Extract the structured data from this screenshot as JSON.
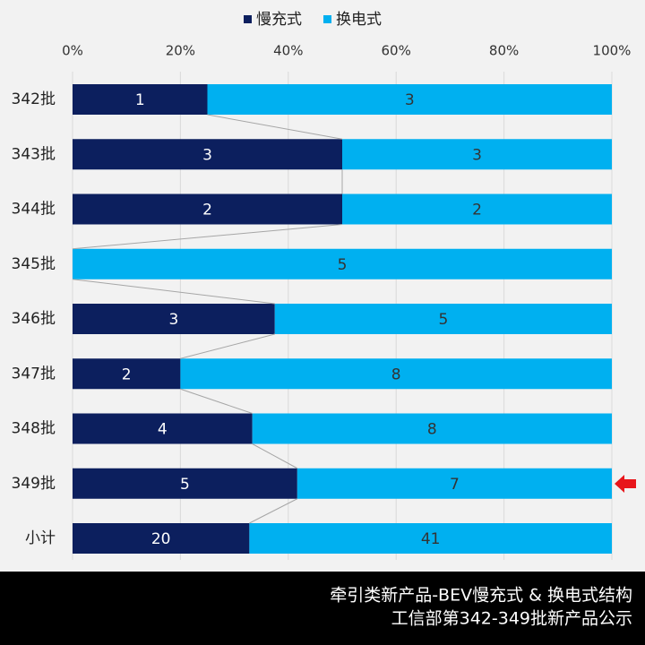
{
  "chart_data": {
    "type": "bar",
    "orientation": "horizontal",
    "stacking": "percent",
    "categories": [
      "342批",
      "343批",
      "344批",
      "345批",
      "346批",
      "347批",
      "348批",
      "349批",
      "小计"
    ],
    "series": [
      {
        "name": "慢充式",
        "color": "#0c1f5e",
        "values": [
          1,
          3,
          2,
          0,
          3,
          2,
          4,
          5,
          20
        ]
      },
      {
        "name": "换电式",
        "color": "#00b0f0",
        "values": [
          3,
          3,
          2,
          5,
          5,
          8,
          8,
          7,
          41
        ]
      }
    ],
    "xlim": [
      0,
      100
    ],
    "xticks": [
      {
        "value": 0,
        "label": "0%"
      },
      {
        "value": 20,
        "label": "20%"
      },
      {
        "value": 40,
        "label": "40%"
      },
      {
        "value": 60,
        "label": "60%"
      },
      {
        "value": 80,
        "label": "80%"
      },
      {
        "value": 100,
        "label": "100%"
      }
    ],
    "grid": true,
    "legend": "top",
    "footer": [
      "牵引类新产品-BEV慢充式 & 换电式结构",
      "工信部第342-349批新产品公示"
    ]
  }
}
